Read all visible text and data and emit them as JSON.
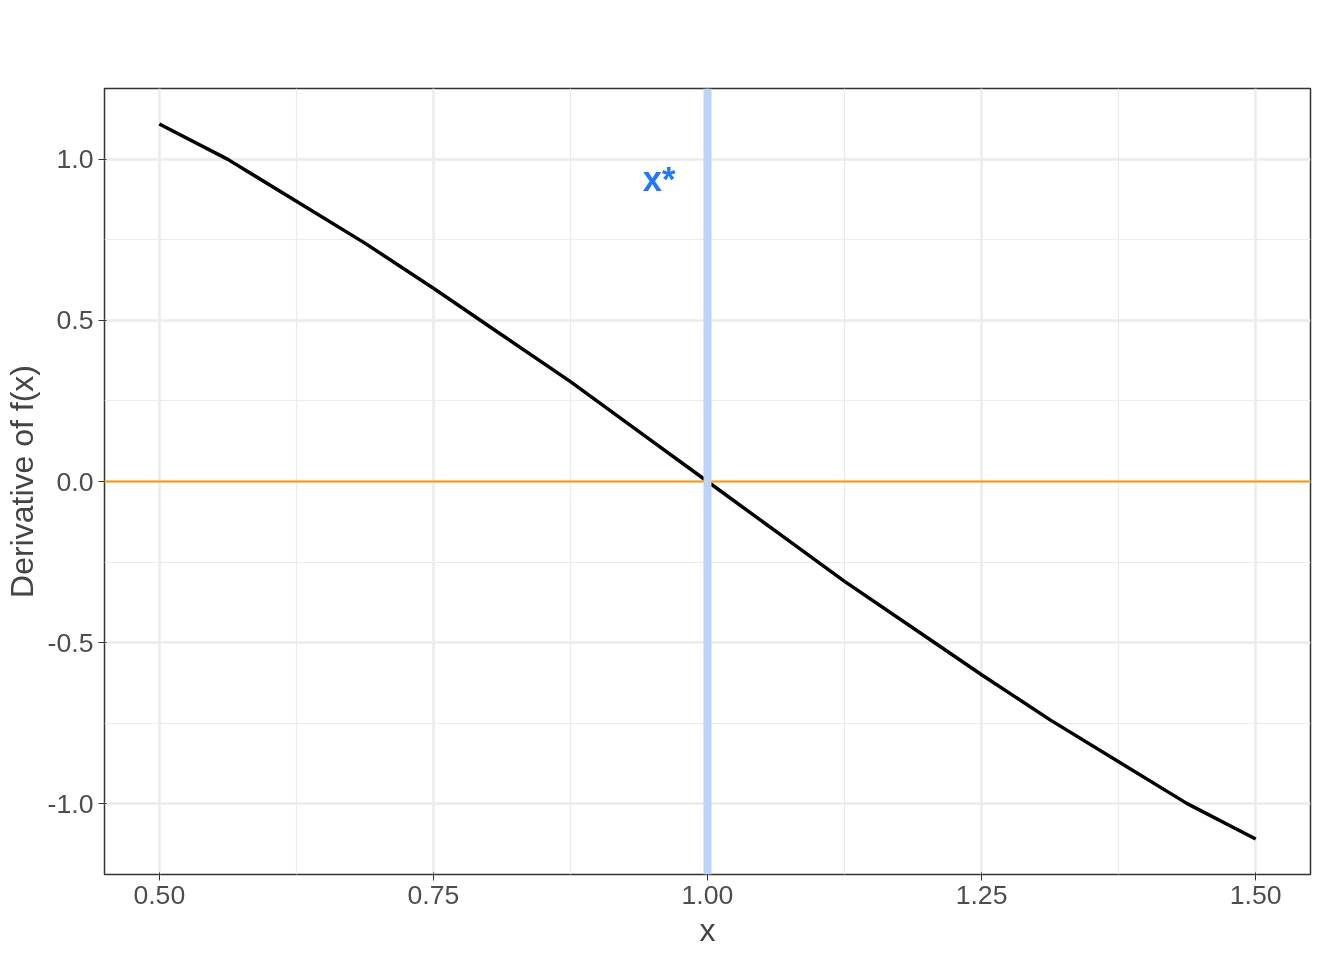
{
  "chart_data": {
    "type": "line",
    "xlabel": "x",
    "ylabel": "Derivative of f(x)",
    "x": [
      0.5,
      0.5625,
      0.625,
      0.6875,
      0.75,
      0.8125,
      0.875,
      0.9375,
      1.0,
      1.0625,
      1.125,
      1.1875,
      1.25,
      1.3125,
      1.375,
      1.4375,
      1.5
    ],
    "series": [
      {
        "color": "#000000",
        "values": [
          1.11,
          1.0,
          0.87,
          0.74,
          0.6,
          0.455,
          0.31,
          0.155,
          0,
          -0.155,
          -0.31,
          -0.455,
          -0.6,
          -0.74,
          -0.87,
          -1.0,
          -1.11
        ]
      }
    ],
    "xlim": [
      0.45,
      1.55
    ],
    "ylim": [
      -1.22,
      1.22
    ],
    "xticks": [
      {
        "value": 0.5,
        "label": "0.50"
      },
      {
        "value": 0.75,
        "label": "0.75"
      },
      {
        "value": 1.0,
        "label": "1.00"
      },
      {
        "value": 1.25,
        "label": "1.25"
      },
      {
        "value": 1.5,
        "label": "1.50"
      }
    ],
    "yticks": [
      {
        "value": -1.0,
        "label": "-1.0"
      },
      {
        "value": -0.5,
        "label": "-0.5"
      },
      {
        "value": 0.0,
        "label": "0.0"
      },
      {
        "value": 0.5,
        "label": "0.5"
      },
      {
        "value": 1.0,
        "label": "1.0"
      }
    ],
    "ref_lines": [
      {
        "axis": "y",
        "value": 0,
        "color": "#ff9900"
      },
      {
        "axis": "x",
        "value": 1.0,
        "color": "#bcd4f7",
        "label": "x*"
      }
    ],
    "grid": true,
    "marker": "none",
    "line_style": "solid"
  }
}
